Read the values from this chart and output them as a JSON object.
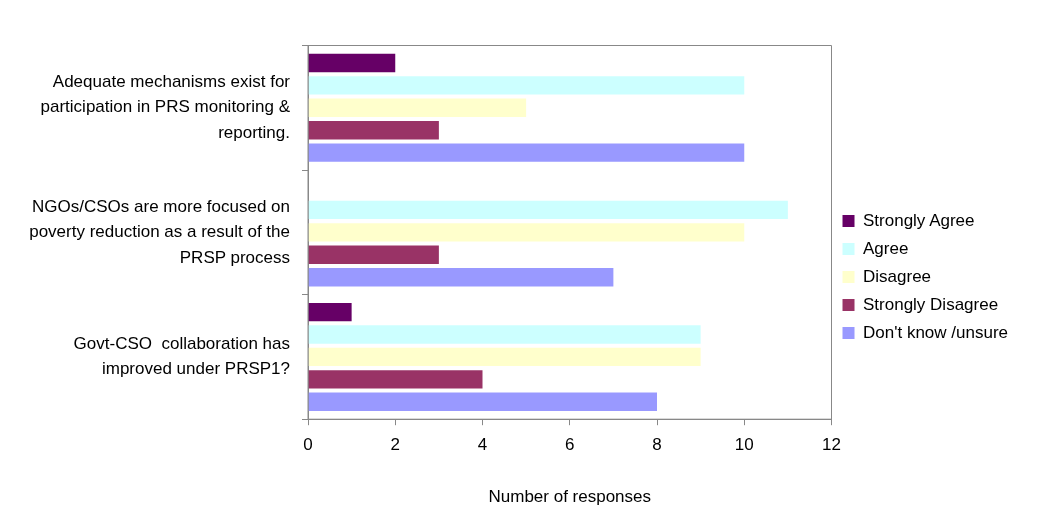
{
  "chart_data": {
    "type": "bar",
    "orientation": "horizontal",
    "xlabel": "Number of responses",
    "categories": [
      "Adequate mechanisms exist for participation in PRS monitoring & reporting.",
      "NGOs/CSOs are more focused on poverty reduction as a result of the PRSP process",
      "Govt-CSO  collaboration has improved under PRSP1?"
    ],
    "series": [
      {
        "name": "Strongly Agree",
        "color": "#660066",
        "values": [
          2,
          0,
          1
        ]
      },
      {
        "name": "Agree",
        "color": "#ccffff",
        "values": [
          10,
          11,
          9
        ]
      },
      {
        "name": "Disagree",
        "color": "#ffffcc",
        "values": [
          5,
          10,
          9
        ]
      },
      {
        "name": "Strongly Disagree",
        "color": "#993366",
        "values": [
          3,
          3,
          4
        ]
      },
      {
        "name": "Don't know /unsure",
        "color": "#9999ff",
        "values": [
          10,
          7,
          8
        ]
      }
    ],
    "xlim": [
      0,
      12
    ],
    "xticks": [
      0,
      2,
      4,
      6,
      8,
      10,
      12
    ],
    "grid": false,
    "legend": "right"
  }
}
